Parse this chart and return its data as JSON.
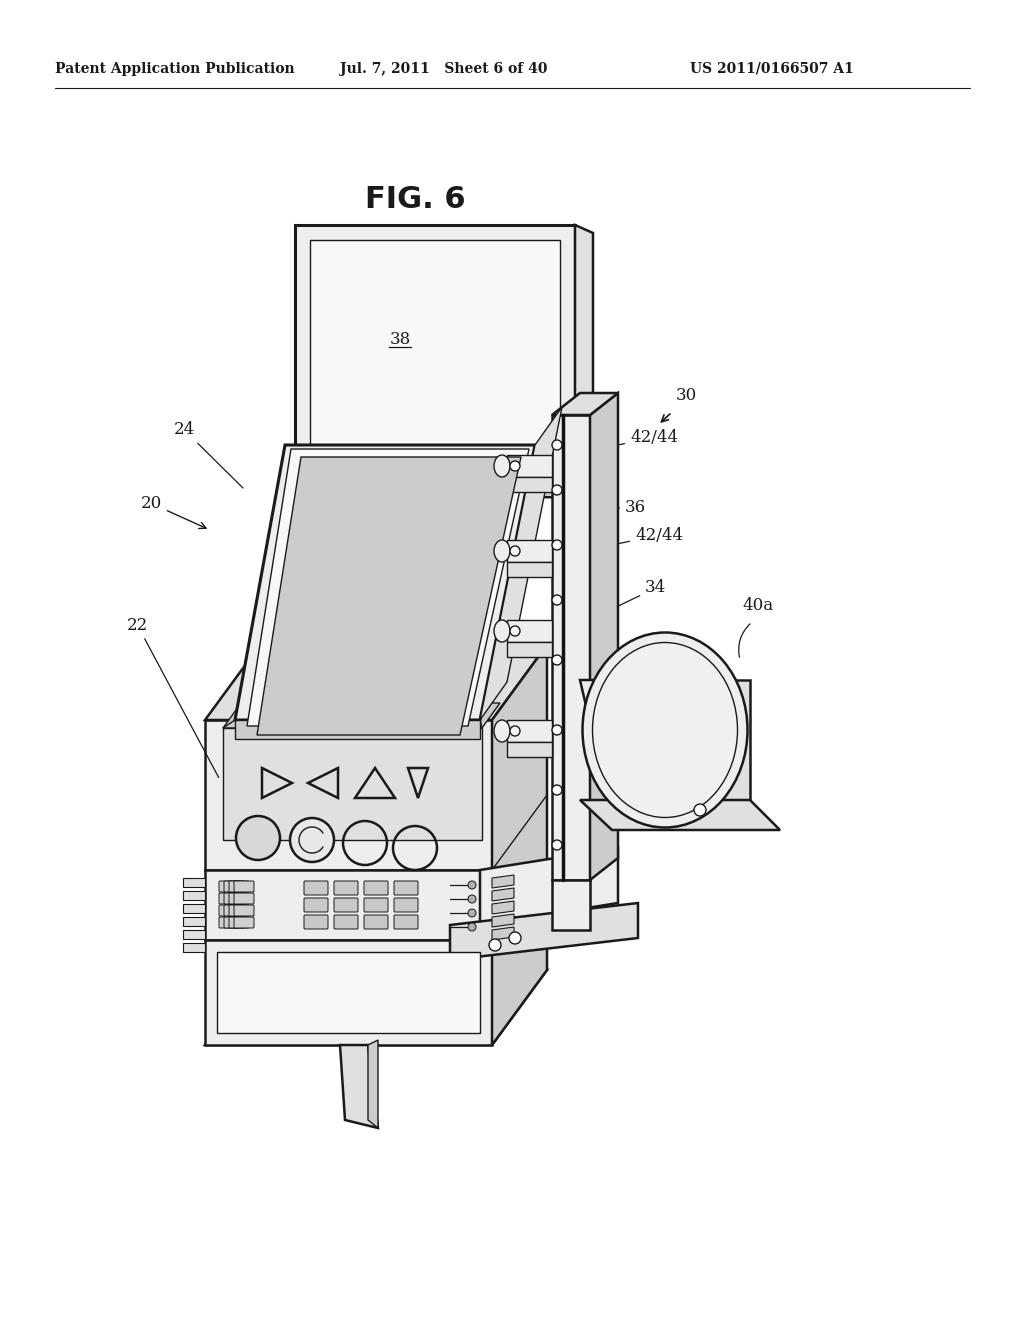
{
  "bg_color": "#ffffff",
  "line_color": "#1a1a1a",
  "lw_main": 1.8,
  "lw_thin": 1.0,
  "lw_thick": 2.2,
  "fill_white": "#f8f8f8",
  "fill_light": "#eeeeee",
  "fill_mid": "#e0e0e0",
  "fill_dark": "#cccccc",
  "fill_inner": "#d8d8d8",
  "header_left": "Patent Application Publication",
  "header_center": "Jul. 7, 2011   Sheet 6 of 40",
  "header_right": "US 2011/0166507 A1",
  "fig_label": "FIG. 6"
}
